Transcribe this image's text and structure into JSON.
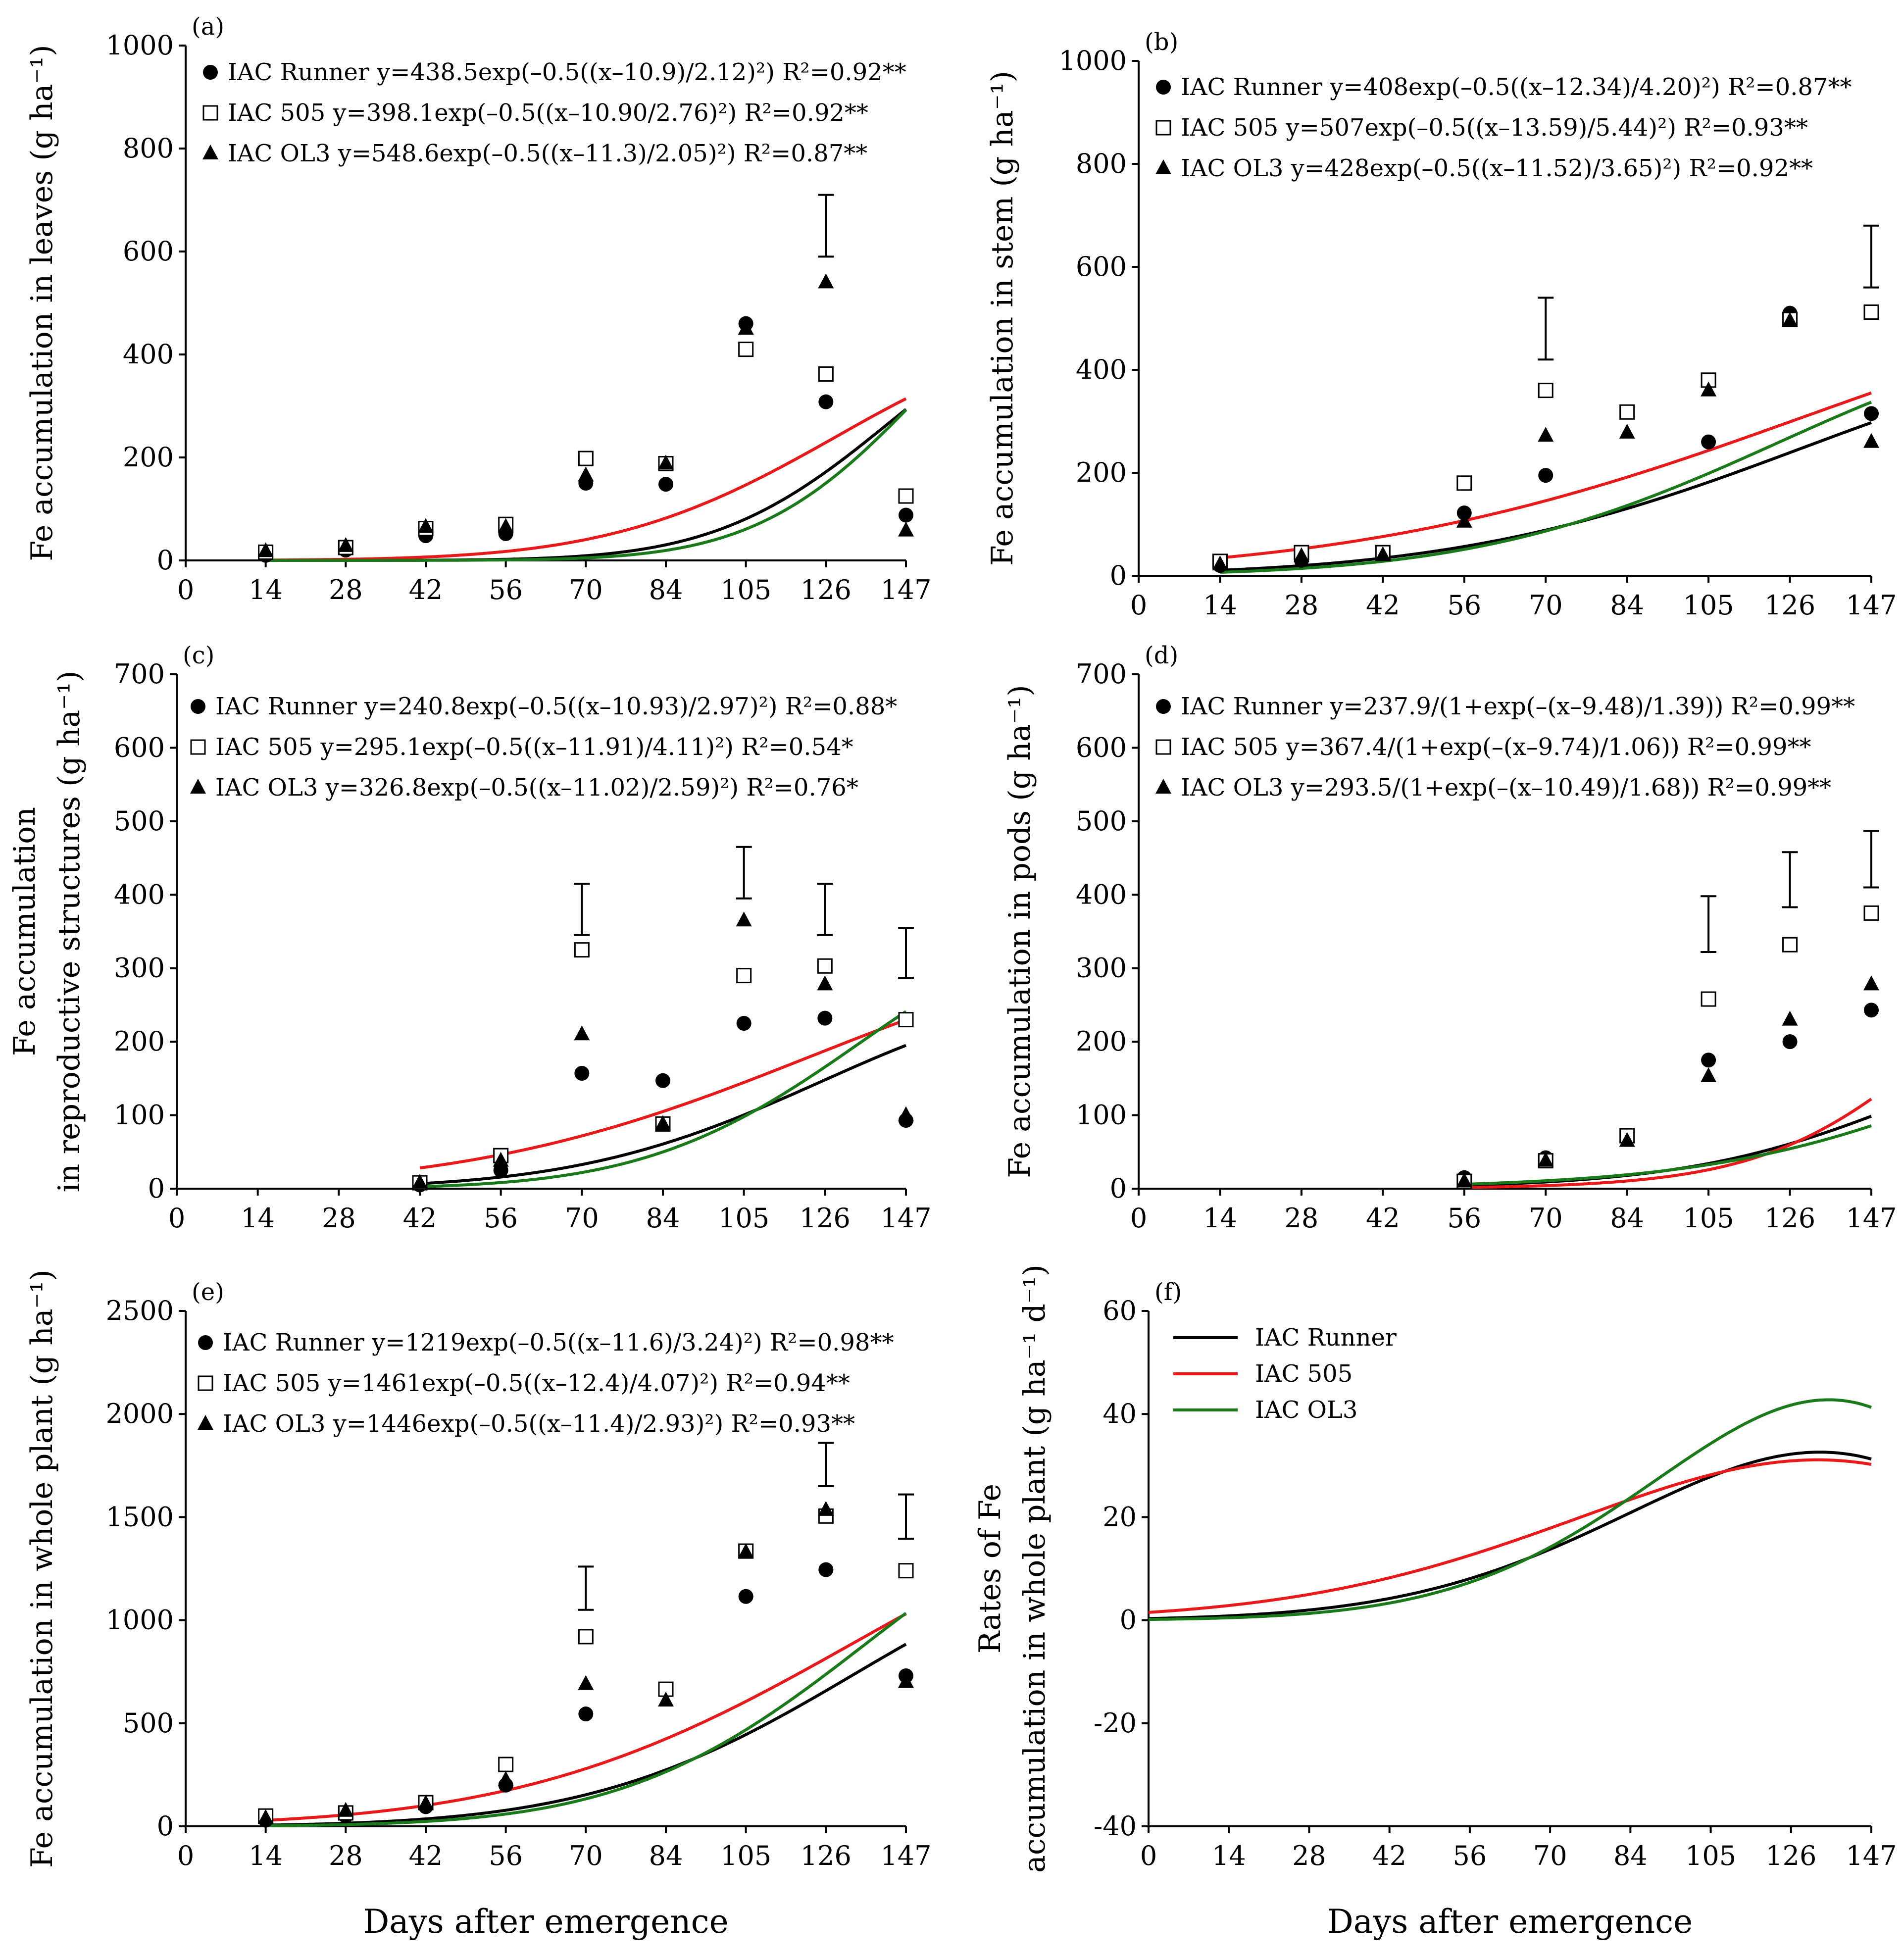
{
  "figure": {
    "x_axis_title": "Days after emergence",
    "colors": {
      "IAC Runner": "#000000",
      "IAC 505": "#e8191b",
      "IAC OL3": "#1a7a1a"
    },
    "marker_shapes": {
      "IAC Runner": "circle",
      "IAC 505": "open-square",
      "IAC OL3": "triangle"
    }
  },
  "chart_data": [
    {
      "type": "scatter",
      "panel": "(a)",
      "ylabel": "Fe accumulation in leaves (g ha⁻¹)",
      "xlabel": "",
      "ylim": [
        0,
        1000
      ],
      "yticks": [
        0,
        200,
        400,
        600,
        800,
        1000
      ],
      "x_tick_labels": [
        "0",
        "14",
        "28",
        "42",
        "56",
        "70",
        "84",
        "105",
        "126",
        "147"
      ],
      "legend_position": "top-left",
      "series": [
        {
          "name": "IAC Runner",
          "marker": "circle",
          "equation": "IAC Runner y=438.5exp(–0.5((x–10.9)/2.12)²) R²=0.92**",
          "fit": {
            "kind": "gauss",
            "a": 438.5,
            "x0": 10.9,
            "b": 2.12
          },
          "points": [
            [
              1,
              10
            ],
            [
              2,
              20
            ],
            [
              3,
              48
            ],
            [
              4,
              52
            ],
            [
              5,
              150
            ],
            [
              6,
              148
            ],
            [
              7,
              460
            ],
            [
              8,
              308
            ],
            [
              9,
              88
            ]
          ]
        },
        {
          "name": "IAC 505",
          "marker": "open-square",
          "equation": "IAC 505 y=398.1exp(–0.5((x–10.90/2.76)²) R²=0.92**",
          "fit": {
            "kind": "gauss",
            "a": 398.1,
            "x0": 10.9,
            "b": 2.76
          },
          "points": [
            [
              1,
              16
            ],
            [
              2,
              25
            ],
            [
              3,
              62
            ],
            [
              4,
              70
            ],
            [
              5,
              198
            ],
            [
              6,
              188
            ],
            [
              7,
              410
            ],
            [
              8,
              362
            ],
            [
              9,
              125
            ]
          ]
        },
        {
          "name": "IAC OL3",
          "marker": "triangle",
          "equation": "IAC OL3 y=548.6exp(–0.5((x–11.3)/2.05)²) R²=0.87**",
          "fit": {
            "kind": "gauss",
            "a": 548.6,
            "x0": 11.3,
            "b": 2.05
          },
          "points": [
            [
              1,
              18
            ],
            [
              2,
              28
            ],
            [
              3,
              65
            ],
            [
              4,
              65
            ],
            [
              5,
              165
            ],
            [
              6,
              188
            ],
            [
              7,
              450
            ],
            [
              8,
              540
            ],
            [
              9,
              58
            ]
          ]
        }
      ],
      "error_bars": [
        {
          "x": 8,
          "low": 590,
          "high": 710
        }
      ]
    },
    {
      "type": "scatter",
      "panel": "(b)",
      "ylabel": "Fe accumulation in stem (g ha⁻¹)",
      "xlabel": "",
      "ylim": [
        0,
        1000
      ],
      "yticks": [
        0,
        200,
        400,
        600,
        800,
        1000
      ],
      "x_tick_labels": [
        "0",
        "14",
        "28",
        "42",
        "56",
        "70",
        "84",
        "105",
        "126",
        "147"
      ],
      "legend_position": "top-left",
      "series": [
        {
          "name": "IAC Runner",
          "marker": "circle",
          "equation": "IAC Runner y=408exp(–0.5((x–12.34)/4.20)²) R²=0.87**",
          "fit": {
            "kind": "gauss",
            "a": 408,
            "x0": 12.34,
            "b": 4.2
          },
          "points": [
            [
              1,
              20
            ],
            [
              2,
              30
            ],
            [
              3,
              45
            ],
            [
              4,
              122
            ],
            [
              5,
              195
            ],
            [
              6,
              318
            ],
            [
              7,
              260
            ],
            [
              8,
              510
            ],
            [
              9,
              315
            ]
          ]
        },
        {
          "name": "IAC 505",
          "marker": "open-square",
          "equation": "IAC 505 y=507exp(–0.5((x–13.59)/5.44)²) R²=0.93**",
          "fit": {
            "kind": "gauss",
            "a": 507,
            "x0": 13.59,
            "b": 5.44
          },
          "points": [
            [
              1,
              28
            ],
            [
              2,
              45
            ],
            [
              3,
              45
            ],
            [
              4,
              180
            ],
            [
              5,
              360
            ],
            [
              6,
              318
            ],
            [
              7,
              380
            ],
            [
              8,
              498
            ],
            [
              9,
              512
            ]
          ]
        },
        {
          "name": "IAC OL3",
          "marker": "triangle",
          "equation": "IAC OL3 y=428exp(–0.5((x–11.52)/3.65)²) R²=0.92**",
          "fit": {
            "kind": "gauss",
            "a": 428,
            "x0": 11.52,
            "b": 3.65
          },
          "points": [
            [
              1,
              22
            ],
            [
              2,
              38
            ],
            [
              3,
              40
            ],
            [
              4,
              105
            ],
            [
              5,
              272
            ],
            [
              6,
              278
            ],
            [
              7,
              360
            ],
            [
              8,
              495
            ],
            [
              9,
              260
            ]
          ]
        }
      ],
      "error_bars": [
        {
          "x": 5,
          "low": 420,
          "high": 540
        },
        {
          "x": 9,
          "low": 560,
          "high": 680
        }
      ]
    },
    {
      "type": "scatter",
      "panel": "(c)",
      "ylabel": "Fe accumulation",
      "ylabel2": "in reproductive structures (g ha⁻¹)",
      "xlabel": "",
      "ylim": [
        0,
        700
      ],
      "yticks": [
        0,
        100,
        200,
        300,
        400,
        500,
        600,
        700
      ],
      "x_tick_labels": [
        "0",
        "14",
        "28",
        "42",
        "56",
        "70",
        "84",
        "105",
        "126",
        "147"
      ],
      "legend_position": "top-left",
      "series": [
        {
          "name": "IAC Runner",
          "marker": "circle",
          "equation": "IAC Runner y=240.8exp(–0.5((x–10.93)/2.97)²) R²=0.88*",
          "fit": {
            "kind": "gauss",
            "a": 240.8,
            "x0": 10.93,
            "b": 2.97
          },
          "points": [
            [
              3,
              5
            ],
            [
              4,
              25
            ],
            [
              5,
              157
            ],
            [
              6,
              147
            ],
            [
              7,
              225
            ],
            [
              8,
              232
            ],
            [
              9,
              93
            ]
          ]
        },
        {
          "name": "IAC 505",
          "marker": "open-square",
          "equation": "IAC 505 y=295.1exp(–0.5((x–11.91)/4.11)²) R²=0.54*",
          "fit": {
            "kind": "gauss",
            "a": 295.1,
            "x0": 11.91,
            "b": 4.11
          },
          "points": [
            [
              3,
              8
            ],
            [
              4,
              45
            ],
            [
              5,
              325
            ],
            [
              6,
              88
            ],
            [
              7,
              290
            ],
            [
              8,
              303
            ],
            [
              9,
              230
            ]
          ]
        },
        {
          "name": "IAC OL3",
          "marker": "triangle",
          "equation": "IAC OL3 y=326.8exp(–0.5((x–11.02)/2.59)²) R²=0.76*",
          "fit": {
            "kind": "gauss",
            "a": 326.8,
            "x0": 11.02,
            "b": 2.59
          },
          "points": [
            [
              3,
              8
            ],
            [
              4,
              38
            ],
            [
              5,
              210
            ],
            [
              6,
              88
            ],
            [
              7,
              365
            ],
            [
              8,
              278
            ],
            [
              9,
              100
            ]
          ]
        }
      ],
      "error_bars": [
        {
          "x": 5,
          "low": 345,
          "high": 415
        },
        {
          "x": 7,
          "low": 395,
          "high": 465
        },
        {
          "x": 8,
          "low": 345,
          "high": 415
        },
        {
          "x": 9,
          "low": 287,
          "high": 355
        }
      ]
    },
    {
      "type": "scatter",
      "panel": "(d)",
      "ylabel": "Fe accumulation in pods (g ha⁻¹)",
      "xlabel": "",
      "ylim": [
        0,
        700
      ],
      "yticks": [
        0,
        100,
        200,
        300,
        400,
        500,
        600,
        700
      ],
      "x_tick_labels": [
        "0",
        "14",
        "28",
        "42",
        "56",
        "70",
        "84",
        "105",
        "126",
        "147"
      ],
      "legend_position": "top-left",
      "series": [
        {
          "name": "IAC Runner",
          "marker": "circle",
          "equation": "IAC Runner y=237.9/(1+exp(–(x–9.48)/1.39)) R²=0.99**",
          "fit": {
            "kind": "sigmoid",
            "a": 237.9,
            "x0": 9.48,
            "b": 1.39
          },
          "points": [
            [
              4,
              15
            ],
            [
              5,
              42
            ],
            [
              6,
              68
            ],
            [
              7,
              175
            ],
            [
              8,
              200
            ],
            [
              9,
              243
            ]
          ]
        },
        {
          "name": "IAC 505",
          "marker": "open-square",
          "equation": "IAC 505 y=367.4/(1+exp(–(x–9.74)/1.06)) R²=0.99**",
          "fit": {
            "kind": "sigmoid",
            "a": 367.4,
            "x0": 9.74,
            "b": 1.06
          },
          "points": [
            [
              4,
              10
            ],
            [
              5,
              38
            ],
            [
              6,
              72
            ],
            [
              7,
              258
            ],
            [
              8,
              332
            ],
            [
              9,
              375
            ]
          ]
        },
        {
          "name": "IAC OL3",
          "marker": "triangle",
          "equation": "IAC OL3 y=293.5/(1+exp(–(x–10.49)/1.68)) R²=0.99**",
          "fit": {
            "kind": "sigmoid",
            "a": 293.5,
            "x0": 10.49,
            "b": 1.68
          },
          "points": [
            [
              4,
              10
            ],
            [
              5,
              38
            ],
            [
              6,
              65
            ],
            [
              7,
              153
            ],
            [
              8,
              230
            ],
            [
              9,
              278
            ]
          ]
        }
      ],
      "error_bars": [
        {
          "x": 7,
          "low": 322,
          "high": 398
        },
        {
          "x": 8,
          "low": 383,
          "high": 458
        },
        {
          "x": 9,
          "low": 410,
          "high": 487
        }
      ]
    },
    {
      "type": "scatter",
      "panel": "(e)",
      "ylabel": "Fe accumulation in whole plant (g ha⁻¹)",
      "xlabel": "Days after emergence",
      "ylim": [
        0,
        2500
      ],
      "yticks": [
        0,
        500,
        1000,
        1500,
        2000,
        2500
      ],
      "x_tick_labels": [
        "0",
        "14",
        "28",
        "42",
        "56",
        "70",
        "84",
        "105",
        "126",
        "147"
      ],
      "legend_position": "top-left",
      "series": [
        {
          "name": "IAC Runner",
          "marker": "circle",
          "equation": "IAC Runner y=1219exp(–0.5((x–11.6)/3.24)²) R²=0.98**",
          "fit": {
            "kind": "gauss",
            "a": 1219,
            "x0": 11.6,
            "b": 3.24
          },
          "points": [
            [
              1,
              30
            ],
            [
              2,
              50
            ],
            [
              3,
              95
            ],
            [
              4,
              200
            ],
            [
              5,
              545
            ],
            [
              6,
              665
            ],
            [
              7,
              1115
            ],
            [
              8,
              1245
            ],
            [
              9,
              730
            ]
          ]
        },
        {
          "name": "IAC 505",
          "marker": "open-square",
          "equation": "IAC 505 y=1461exp(–0.5((x–12.4)/4.07)²) R²=0.94**",
          "fit": {
            "kind": "gauss",
            "a": 1461,
            "x0": 12.4,
            "b": 4.07
          },
          "points": [
            [
              1,
              50
            ],
            [
              2,
              65
            ],
            [
              3,
              115
            ],
            [
              4,
              300
            ],
            [
              5,
              920
            ],
            [
              6,
              665
            ],
            [
              7,
              1335
            ],
            [
              8,
              1505
            ],
            [
              9,
              1240
            ]
          ]
        },
        {
          "name": "IAC OL3",
          "marker": "triangle",
          "equation": "IAC OL3 y=1446exp(–0.5((x–11.4)/2.93)²) R²=0.93**",
          "fit": {
            "kind": "gauss",
            "a": 1446,
            "x0": 11.4,
            "b": 2.93
          },
          "points": [
            [
              1,
              40
            ],
            [
              2,
              75
            ],
            [
              3,
              110
            ],
            [
              4,
              225
            ],
            [
              5,
              690
            ],
            [
              6,
              610
            ],
            [
              7,
              1330
            ],
            [
              8,
              1535
            ],
            [
              9,
              700
            ]
          ]
        }
      ],
      "error_bars": [
        {
          "x": 5,
          "low": 1050,
          "high": 1260
        },
        {
          "x": 8,
          "low": 1650,
          "high": 1860
        },
        {
          "x": 9,
          "low": 1395,
          "high": 1610
        }
      ]
    },
    {
      "type": "line",
      "panel": "(f)",
      "ylabel": "Rates of Fe",
      "ylabel2": "accumulation in whole plant (g ha⁻¹ d⁻¹)",
      "xlabel": "Days after emergence",
      "ylim": [
        -40,
        60
      ],
      "yticks": [
        -40,
        -20,
        0,
        20,
        40,
        60
      ],
      "x_tick_labels": [
        "0",
        "14",
        "28",
        "42",
        "56",
        "70",
        "84",
        "105",
        "126",
        "147"
      ],
      "legend_position": "top-left",
      "series": [
        {
          "name": "IAC Runner",
          "label": "IAC Runner",
          "fit": {
            "kind": "deriv",
            "a": 1219,
            "x0": 11.6,
            "b": 3.24
          }
        },
        {
          "name": "IAC 505",
          "label": "IAC 505",
          "fit": {
            "kind": "deriv",
            "a": 1461,
            "x0": 12.4,
            "b": 4.07
          }
        },
        {
          "name": "IAC OL3",
          "label": "IAC OL3",
          "fit": {
            "kind": "deriv",
            "a": 1446,
            "x0": 11.4,
            "b": 2.93
          }
        }
      ]
    }
  ]
}
